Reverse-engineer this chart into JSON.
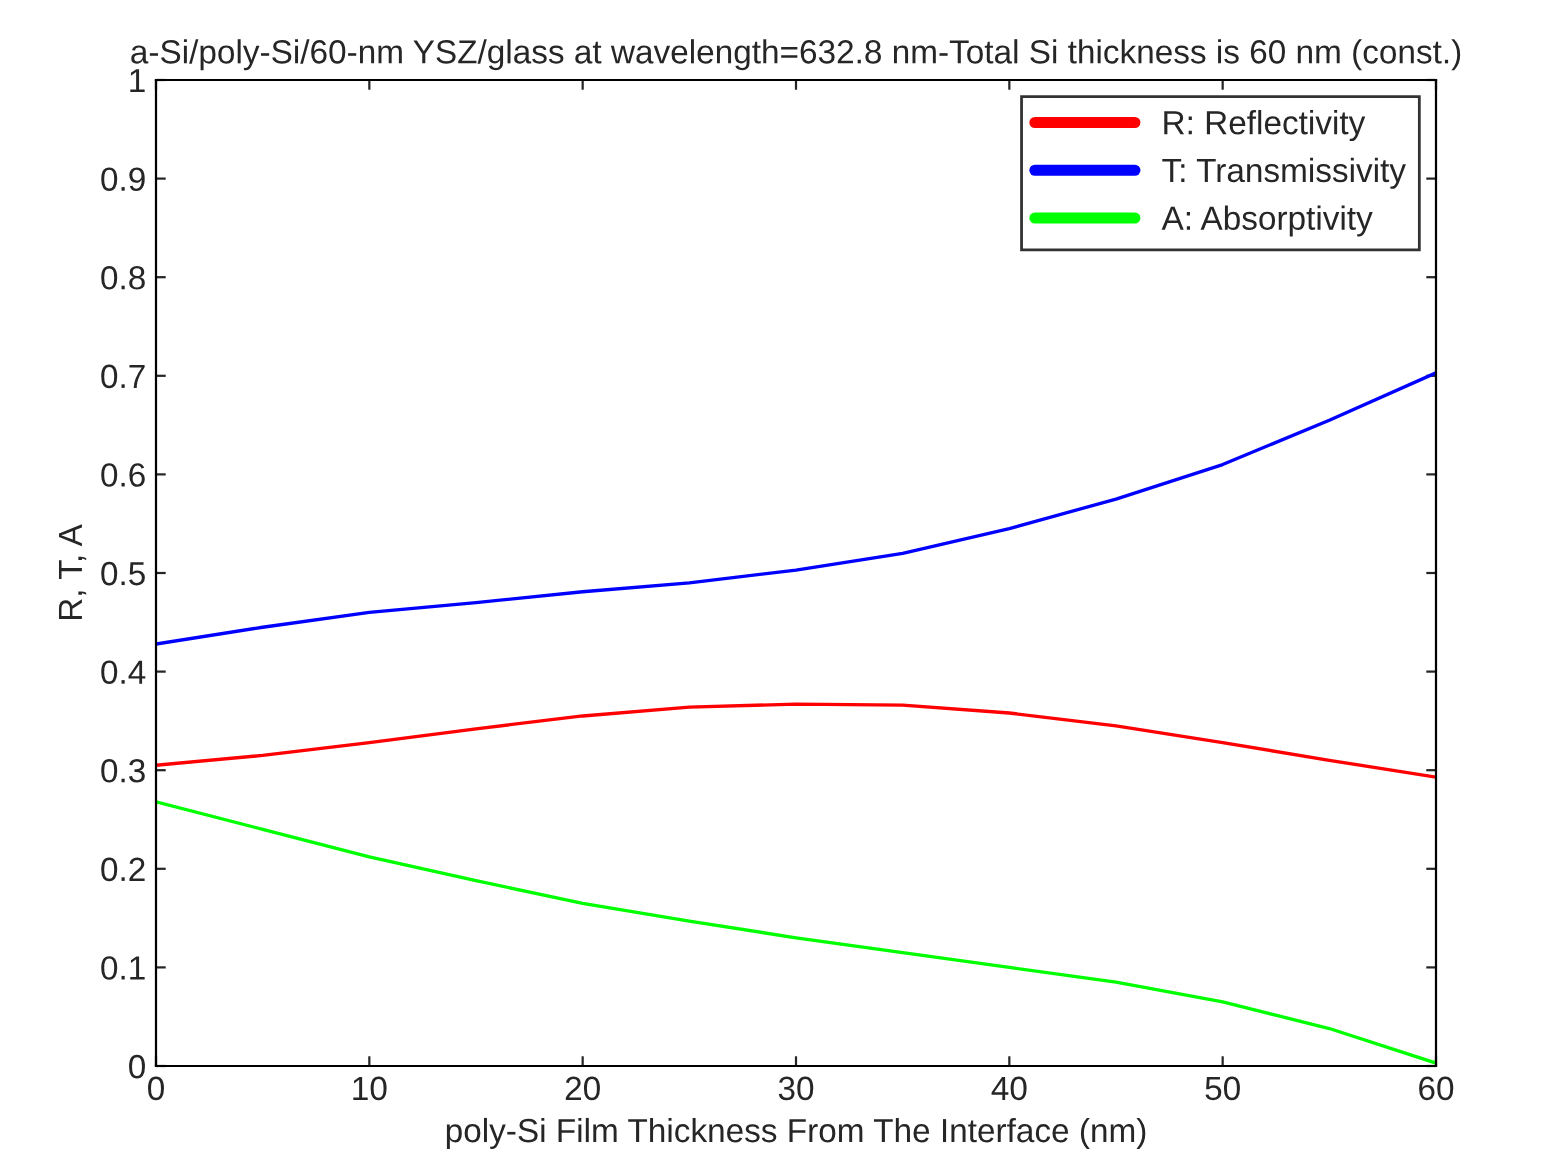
{
  "chart_data": {
    "type": "line",
    "title": "a-Si/poly-Si/60-nm YSZ/glass at wavelength=632.8 nm-Total Si thickness is 60 nm (const.)",
    "xlabel": "poly-Si Film Thickness From The Interface (nm)",
    "ylabel": "R, T, A",
    "x": [
      0,
      5,
      10,
      15,
      20,
      25,
      30,
      35,
      40,
      45,
      50,
      55,
      60
    ],
    "series": [
      {
        "name": "R: Reflectivity",
        "color": "#ff0000",
        "values": [
          0.305,
          0.315,
          0.328,
          0.342,
          0.355,
          0.364,
          0.367,
          0.366,
          0.358,
          0.345,
          0.328,
          0.31,
          0.293
        ]
      },
      {
        "name": "T: Transmissivity",
        "color": "#0000ff",
        "values": [
          0.428,
          0.445,
          0.46,
          0.47,
          0.481,
          0.49,
          0.503,
          0.52,
          0.545,
          0.575,
          0.61,
          0.655,
          0.703
        ]
      },
      {
        "name": "A: Absorptivity",
        "color": "#00ff00",
        "values": [
          0.268,
          0.24,
          0.212,
          0.188,
          0.165,
          0.147,
          0.13,
          0.115,
          0.1,
          0.085,
          0.065,
          0.038,
          0.003
        ]
      }
    ],
    "xlim": [
      0,
      60
    ],
    "xticks": [
      0,
      10,
      20,
      30,
      40,
      50,
      60
    ],
    "ylim": [
      0,
      1
    ],
    "yticks": [
      0,
      0.1,
      0.2,
      0.3,
      0.4,
      0.5,
      0.6,
      0.7,
      0.8,
      0.9,
      1
    ],
    "legend": "top right",
    "grid": false
  }
}
